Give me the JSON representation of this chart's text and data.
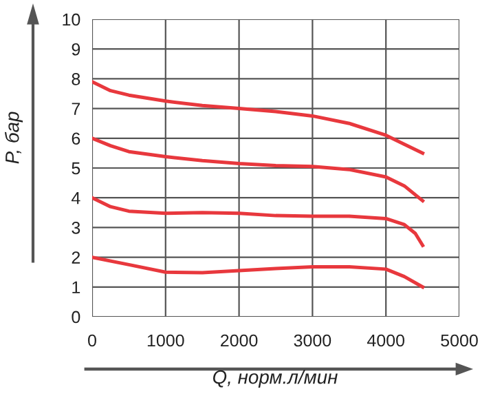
{
  "chart_data": {
    "type": "line",
    "xlabel": "Q, норм.л/мин",
    "ylabel": "P, бар",
    "series": [
      {
        "color": "#e8383d",
        "x": [
          0,
          250,
          500,
          1000,
          1500,
          2000,
          2500,
          3000,
          3500,
          4000,
          4250,
          4500
        ],
        "values": [
          7.9,
          7.6,
          7.45,
          7.25,
          7.1,
          7.0,
          6.9,
          6.75,
          6.5,
          6.1,
          5.8,
          5.5
        ]
      },
      {
        "color": "#e8383d",
        "x": [
          0,
          250,
          500,
          1000,
          1500,
          2000,
          2500,
          3000,
          3500,
          4000,
          4250,
          4500
        ],
        "values": [
          6.0,
          5.75,
          5.55,
          5.38,
          5.25,
          5.15,
          5.08,
          5.05,
          4.95,
          4.7,
          4.4,
          3.9
        ]
      },
      {
        "color": "#e8383d",
        "x": [
          0,
          250,
          500,
          1000,
          1500,
          2000,
          2500,
          3000,
          3500,
          4000,
          4250,
          4400,
          4500
        ],
        "values": [
          4.0,
          3.7,
          3.55,
          3.48,
          3.5,
          3.48,
          3.4,
          3.38,
          3.38,
          3.3,
          3.1,
          2.8,
          2.4
        ]
      },
      {
        "color": "#e8383d",
        "x": [
          0,
          500,
          1000,
          1500,
          2000,
          2500,
          3000,
          3500,
          4000,
          4250,
          4500
        ],
        "values": [
          2.0,
          1.75,
          1.5,
          1.48,
          1.55,
          1.62,
          1.68,
          1.68,
          1.6,
          1.35,
          1.0
        ]
      }
    ],
    "xlim": [
      0,
      5000
    ],
    "xticks": [
      0,
      1000,
      2000,
      3000,
      4000,
      5000
    ],
    "ylim": [
      0,
      10
    ],
    "yticks": [
      0,
      1,
      2,
      3,
      4,
      5,
      6,
      7,
      8,
      9,
      10
    ],
    "grid": true,
    "marker": "none",
    "line_style": "solid",
    "legend": false
  }
}
